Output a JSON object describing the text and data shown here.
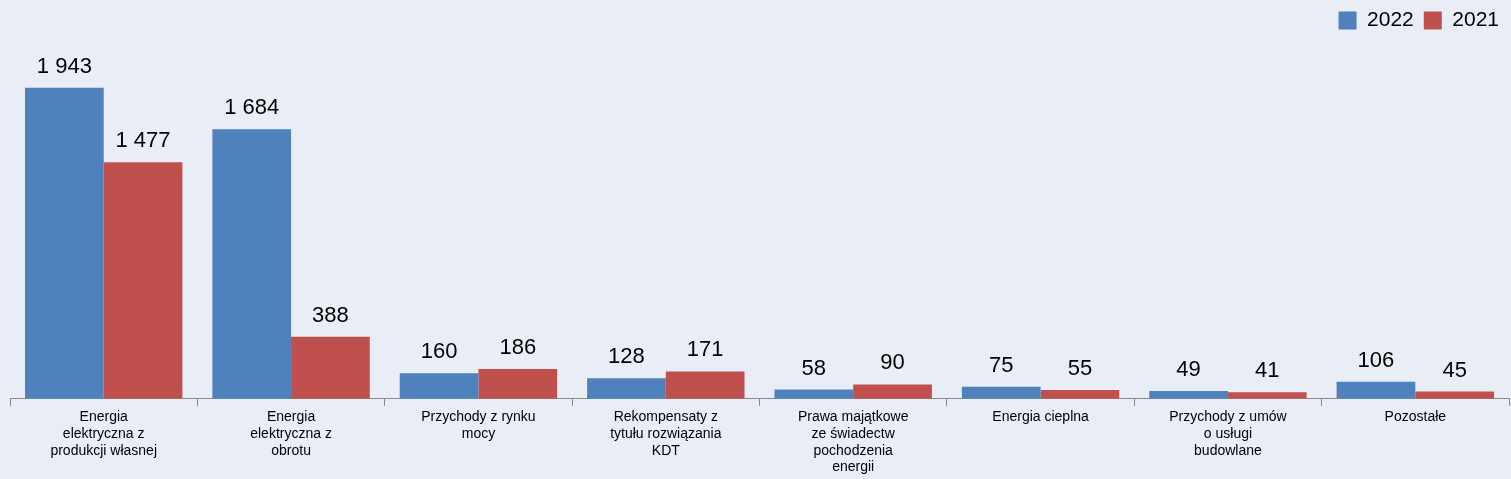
{
  "chart_data": {
    "type": "bar",
    "categories": [
      "Energia elektryczna z produkcji własnej",
      "Energia elektryczna z obrotu",
      "Przychody z rynku mocy",
      "Rekompensaty z tytułu rozwiązania KDT",
      "Prawa majątkowe ze świadectw pochodzenia energii",
      "Energia cieplna",
      "Przychody z umów o usługi budowlane",
      "Pozostałe"
    ],
    "series": [
      {
        "name": "2022",
        "color": "#4f81bd",
        "values": [
          1943,
          1684,
          160,
          128,
          58,
          75,
          49,
          106
        ],
        "value_labels": [
          "1 943",
          "1 684",
          "160",
          "128",
          "58",
          "75",
          "49",
          "106"
        ]
      },
      {
        "name": "2021",
        "color": "#c0504d",
        "values": [
          1477,
          388,
          186,
          171,
          90,
          55,
          41,
          45
        ],
        "value_labels": [
          "1 477",
          "388",
          "186",
          "171",
          "90",
          "55",
          "41",
          "45"
        ]
      }
    ],
    "legend": "top right",
    "grid": false
  }
}
